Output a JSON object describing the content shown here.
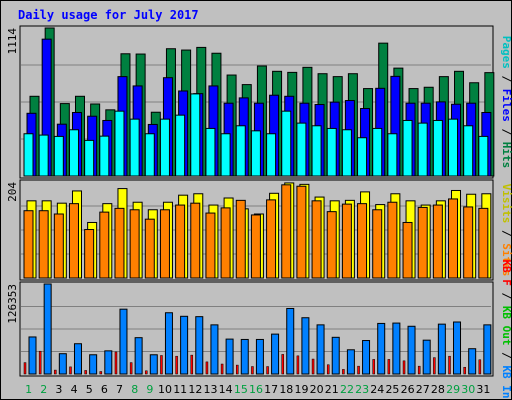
{
  "chart_data": {
    "type": "bar",
    "title": "Daily usage for July 2017",
    "categories": [
      "1",
      "2",
      "3",
      "4",
      "5",
      "6",
      "7",
      "8",
      "9",
      "10",
      "11",
      "12",
      "13",
      "14",
      "15",
      "16",
      "17",
      "18",
      "19",
      "20",
      "21",
      "22",
      "23",
      "24",
      "25",
      "26",
      "27",
      "28",
      "29",
      "30",
      "31"
    ],
    "weekend_days": [
      "1",
      "2",
      "8",
      "9",
      "15",
      "16",
      "22",
      "23",
      "29",
      "30"
    ],
    "panels": [
      {
        "id": "hits",
        "ymax_label": "1114",
        "ylim": [
          0,
          1114
        ],
        "series": [
          {
            "name": "Hits",
            "color": "#008040",
            "values": [
              600,
              1114,
              545,
              600,
              542,
              498,
              920,
              918,
              480,
              958,
              948,
              968,
              924,
              760,
              688,
              828,
              788,
              780,
              818,
              770,
              748,
              770,
              658,
              1000,
              812,
              658,
              668,
              748,
              788,
              702,
              778
            ]
          },
          {
            "name": "Files",
            "color": "#0000ff",
            "values": [
              472,
              1030,
              390,
              478,
              450,
              418,
              748,
              678,
              388,
              740,
              640,
              620,
              678,
              548,
              588,
              548,
              608,
              600,
              548,
              538,
              556,
              568,
              508,
              660,
              750,
              548,
              548,
              558,
              540,
              548,
              478
            ]
          },
          {
            "name": "Pages",
            "color": "#00ffff",
            "values": [
              318,
              308,
              298,
              348,
              268,
              300,
              488,
              428,
              318,
              428,
              458,
              618,
              358,
              318,
              378,
              340,
              318,
              488,
              398,
              378,
              358,
              348,
              288,
              358,
              318,
              418,
              398,
              418,
              428,
              378,
              298
            ]
          }
        ],
        "side_labels": [
          {
            "text": "Pages",
            "color": "#00c0c0"
          },
          {
            "text": " / ",
            "color": "#000000"
          },
          {
            "text": "Files",
            "color": "#0000ff"
          },
          {
            "text": " / ",
            "color": "#000000"
          },
          {
            "text": "Hits",
            "color": "#008040"
          }
        ]
      },
      {
        "id": "visits",
        "ymax_label": "204",
        "ylim": [
          0,
          204
        ],
        "series": [
          {
            "name": "Visits",
            "color": "#ffff00",
            "values": [
              164,
              164,
              159,
              185,
              118,
              158,
              190,
              161,
              145,
              161,
              176,
              179,
              155,
              170,
              147,
              136,
              180,
              202,
              199,
              172,
              164,
              165,
              183,
              156,
              179,
              164,
              155,
              164,
              186,
              178,
              179
            ]
          },
          {
            "name": "Sites",
            "color": "#ff8000",
            "values": [
              143,
              143,
              136,
              158,
              103,
              140,
              148,
              145,
              125,
              145,
              155,
              159,
              138,
              149,
              165,
              134,
              166,
              198,
              195,
              164,
              141,
              157,
              158,
              145,
              161,
              118,
              150,
              155,
              168,
              151,
              148
            ]
          }
        ],
        "side_labels": [
          {
            "text": "Visits",
            "color": "#c0c000"
          },
          {
            "text": " / ",
            "color": "#000000"
          },
          {
            "text": "Sites",
            "color": "#ff8000"
          }
        ]
      },
      {
        "id": "kbytes",
        "ymax_label": "126353",
        "ylim": [
          0,
          126353
        ],
        "series": [
          {
            "name": "KB In",
            "color": "#0080ff",
            "values": [
              52000,
              126353,
              28500,
              42500,
              27000,
              32500,
              91000,
              51000,
              27000,
              86000,
              81000,
              80500,
              69000,
              49000,
              48500,
              48500,
              56000,
              92000,
              79000,
              69000,
              51500,
              34000,
              47000,
              71000,
              71500,
              67000,
              47500,
              70000,
              73000,
              35500,
              69000
            ]
          },
          {
            "name": "KB Out",
            "color": "#00c000",
            "values": [
              0,
              0,
              0,
              0,
              0,
              0,
              0,
              0,
              0,
              0,
              0,
              0,
              0,
              0,
              0,
              0,
              0,
              0,
              0,
              0,
              0,
              0,
              0,
              0,
              0,
              0,
              0,
              0,
              0,
              0,
              0
            ]
          },
          {
            "name": "KB F",
            "color": "#ff0000",
            "values": [
              16000,
              32000,
              5500,
              10000,
              5000,
              3500,
              31000,
              16000,
              4500,
              26000,
              25000,
              26500,
              17000,
              14000,
              12500,
              10500,
              10500,
              27500,
              25500,
              21000,
              13000,
              6500,
              11000,
              20500,
              20500,
              18500,
              11000,
              23000,
              25000,
              9500,
              20000
            ]
          }
        ],
        "side_labels": [
          {
            "text": "KB F",
            "color": "#ff0000"
          },
          {
            "text": " / ",
            "color": "#000000"
          },
          {
            "text": "KB Out",
            "color": "#00c000"
          },
          {
            "text": " / ",
            "color": "#000000"
          },
          {
            "text": "KB In",
            "color": "#0080ff"
          }
        ]
      }
    ]
  }
}
